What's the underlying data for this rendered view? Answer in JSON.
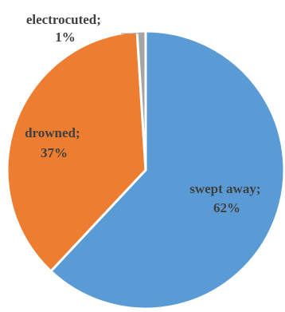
{
  "chart_data": {
    "type": "pie",
    "title": "",
    "slices": [
      {
        "label": "swept away",
        "value": 62,
        "value_text": "62%",
        "color": "#5B9BD5"
      },
      {
        "label": "drowned",
        "value": 37,
        "value_text": "37%",
        "color": "#ED7D31"
      },
      {
        "label": "electrocuted",
        "value": 1,
        "value_text": "1%",
        "color": "#A5A5A5"
      }
    ],
    "start_angle_deg": 0,
    "direction": "clockwise",
    "slice_border_color": "#ffffff",
    "legend": "none",
    "label_color": "#404040"
  }
}
